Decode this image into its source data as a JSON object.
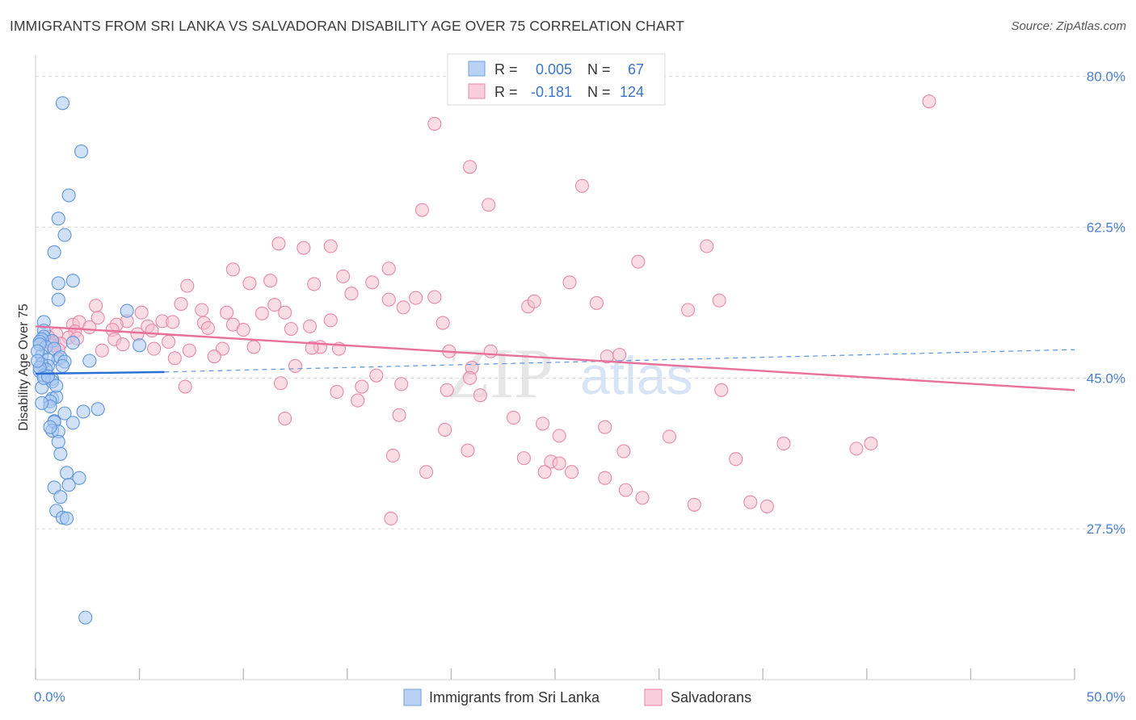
{
  "title": "IMMIGRANTS FROM SRI LANKA VS SALVADORAN DISABILITY AGE OVER 75 CORRELATION CHART",
  "source": "Source: ZipAtlas.com",
  "watermark": {
    "zip": "ZIP",
    "atlas": "atlas"
  },
  "colors": {
    "blue_fill": "#a9c8f0",
    "blue_stroke": "#5f95dd",
    "blue_line": "#2a6fd6",
    "pink_fill": "#f6bfd0",
    "pink_stroke": "#e889a8",
    "pink_line": "#e8709a",
    "grid": "#d9d9d9",
    "tick": "#4a7fd0"
  },
  "legend": {
    "r_label": "R =",
    "n_label": "N =",
    "rows": [
      {
        "series": "blue",
        "r": "0.005",
        "n": "67"
      },
      {
        "series": "pink",
        "r": "-0.181",
        "n": "124"
      }
    ]
  },
  "bottom_legend": [
    "Immigrants from Sri Lanka",
    "Salvadorans"
  ],
  "chart_data": {
    "type": "scatter",
    "xlabel": "",
    "ylabel": "Disability Age Over 75",
    "xlim": [
      0,
      50
    ],
    "ylim": [
      10,
      82.5
    ],
    "x_tick_labels": [
      {
        "x": 0,
        "label": "0.0%"
      },
      {
        "x": 50,
        "label": "50.0%"
      }
    ],
    "y_ticks": [
      {
        "y": 80.0,
        "label": "80.0%"
      },
      {
        "y": 62.5,
        "label": "62.5%"
      },
      {
        "y": 45.0,
        "label": "45.0%"
      },
      {
        "y": 27.5,
        "label": "27.5%"
      }
    ],
    "grid": true,
    "legend_position": "top-center",
    "series": [
      {
        "name": "Immigrants from Sri Lanka",
        "color": "blue",
        "trend": {
          "x": [
            0,
            6.2
          ],
          "y": [
            45.5,
            45.7
          ],
          "dashed_extension": [
            6.2,
            50,
            45.7,
            48.3
          ]
        },
        "points": [
          [
            1.3,
            76.9
          ],
          [
            2.2,
            71.3
          ],
          [
            1.6,
            66.2
          ],
          [
            1.1,
            63.5
          ],
          [
            1.4,
            61.6
          ],
          [
            0.9,
            59.6
          ],
          [
            1.8,
            56.3
          ],
          [
            1.1,
            56.0
          ],
          [
            1.1,
            54.1
          ],
          [
            4.4,
            52.8
          ],
          [
            0.4,
            51.5
          ],
          [
            0.4,
            50.5
          ],
          [
            0.4,
            49.8
          ],
          [
            0.8,
            49.3
          ],
          [
            1.8,
            49.1
          ],
          [
            5.0,
            48.8
          ],
          [
            0.3,
            49.5
          ],
          [
            0.2,
            49.2
          ],
          [
            0.5,
            48.6
          ],
          [
            0.9,
            48.4
          ],
          [
            1.1,
            47.2
          ],
          [
            1.2,
            47.4
          ],
          [
            0.3,
            47.6
          ],
          [
            0.6,
            47.1
          ],
          [
            0.6,
            46.4
          ],
          [
            0.3,
            46.6
          ],
          [
            0.5,
            46.0
          ],
          [
            0.2,
            45.8
          ],
          [
            0.4,
            45.3
          ],
          [
            0.8,
            44.9
          ],
          [
            2.6,
            47.0
          ],
          [
            0.3,
            43.9
          ],
          [
            0.8,
            44.6
          ],
          [
            1.4,
            46.9
          ],
          [
            1.3,
            46.4
          ],
          [
            0.8,
            42.6
          ],
          [
            1.0,
            42.8
          ],
          [
            0.7,
            42.3
          ],
          [
            3.0,
            41.4
          ],
          [
            2.3,
            41.1
          ],
          [
            1.4,
            40.9
          ],
          [
            0.9,
            40.0
          ],
          [
            0.9,
            39.9
          ],
          [
            1.8,
            39.8
          ],
          [
            0.8,
            38.9
          ],
          [
            1.1,
            38.8
          ],
          [
            0.7,
            39.3
          ],
          [
            1.1,
            37.6
          ],
          [
            1.2,
            36.2
          ],
          [
            1.5,
            34.0
          ],
          [
            2.1,
            33.4
          ],
          [
            1.6,
            32.6
          ],
          [
            0.9,
            32.3
          ],
          [
            1.2,
            31.2
          ],
          [
            1.0,
            29.6
          ],
          [
            1.3,
            28.8
          ],
          [
            1.5,
            28.7
          ],
          [
            2.4,
            17.2
          ],
          [
            0.2,
            48.9
          ],
          [
            0.1,
            48.1
          ],
          [
            0.2,
            46.2
          ],
          [
            0.4,
            45.0
          ],
          [
            0.6,
            45.2
          ],
          [
            1.0,
            44.1
          ],
          [
            0.1,
            47.0
          ],
          [
            0.7,
            41.7
          ],
          [
            0.3,
            42.1
          ]
        ]
      },
      {
        "name": "Salvadorans",
        "color": "pink",
        "trend": {
          "x": [
            0,
            50
          ],
          "y": [
            51.0,
            43.6
          ]
        },
        "points": [
          [
            43.0,
            77.1
          ],
          [
            19.2,
            74.5
          ],
          [
            20.9,
            69.5
          ],
          [
            26.3,
            67.3
          ],
          [
            21.8,
            65.1
          ],
          [
            18.6,
            64.5
          ],
          [
            11.7,
            60.6
          ],
          [
            12.9,
            60.1
          ],
          [
            14.2,
            60.3
          ],
          [
            32.3,
            60.3
          ],
          [
            29.0,
            58.5
          ],
          [
            9.5,
            57.6
          ],
          [
            17.0,
            57.7
          ],
          [
            11.3,
            56.3
          ],
          [
            14.8,
            56.8
          ],
          [
            16.2,
            56.1
          ],
          [
            25.7,
            56.1
          ],
          [
            7.3,
            55.7
          ],
          [
            10.3,
            56.0
          ],
          [
            13.4,
            55.9
          ],
          [
            15.2,
            54.8
          ],
          [
            17.0,
            54.1
          ],
          [
            18.3,
            54.3
          ],
          [
            19.2,
            54.4
          ],
          [
            23.7,
            53.3
          ],
          [
            31.4,
            52.9
          ],
          [
            32.9,
            54.0
          ],
          [
            2.9,
            53.4
          ],
          [
            7.0,
            53.6
          ],
          [
            11.5,
            53.5
          ],
          [
            12.0,
            52.6
          ],
          [
            17.7,
            53.2
          ],
          [
            24.0,
            53.9
          ],
          [
            27.0,
            53.7
          ],
          [
            8.0,
            52.9
          ],
          [
            9.2,
            52.6
          ],
          [
            5.1,
            52.6
          ],
          [
            3.0,
            52.0
          ],
          [
            4.4,
            51.6
          ],
          [
            6.1,
            51.6
          ],
          [
            10.9,
            52.5
          ],
          [
            14.2,
            51.7
          ],
          [
            19.6,
            51.4
          ],
          [
            3.9,
            51.2
          ],
          [
            8.1,
            51.4
          ],
          [
            9.5,
            51.2
          ],
          [
            1.8,
            51.2
          ],
          [
            2.1,
            51.5
          ],
          [
            2.6,
            50.9
          ],
          [
            5.4,
            51.0
          ],
          [
            6.6,
            51.5
          ],
          [
            8.3,
            50.8
          ],
          [
            12.3,
            50.7
          ],
          [
            13.2,
            51.0
          ],
          [
            1.9,
            50.4
          ],
          [
            3.7,
            50.6
          ],
          [
            4.9,
            50.1
          ],
          [
            5.6,
            50.5
          ],
          [
            10.0,
            50.6
          ],
          [
            1.0,
            50.1
          ],
          [
            0.6,
            49.8
          ],
          [
            1.6,
            49.7
          ],
          [
            2.0,
            49.6
          ],
          [
            0.4,
            49.3
          ],
          [
            0.9,
            49.1
          ],
          [
            1.2,
            49.0
          ],
          [
            3.8,
            49.5
          ],
          [
            6.4,
            49.2
          ],
          [
            4.2,
            48.9
          ],
          [
            7.4,
            48.2
          ],
          [
            9.0,
            48.4
          ],
          [
            10.5,
            48.6
          ],
          [
            13.7,
            48.6
          ],
          [
            14.6,
            48.4
          ],
          [
            19.9,
            48.1
          ],
          [
            21.9,
            48.1
          ],
          [
            27.5,
            47.5
          ],
          [
            6.7,
            47.3
          ],
          [
            8.6,
            47.5
          ],
          [
            0.8,
            48.8
          ],
          [
            1.1,
            48.3
          ],
          [
            28.1,
            47.7
          ],
          [
            21.0,
            46.2
          ],
          [
            12.5,
            46.4
          ],
          [
            3.2,
            48.2
          ],
          [
            5.7,
            48.4
          ],
          [
            16.4,
            45.3
          ],
          [
            7.2,
            44.0
          ],
          [
            11.8,
            44.4
          ],
          [
            15.7,
            44.0
          ],
          [
            19.8,
            43.6
          ],
          [
            15.5,
            42.4
          ],
          [
            14.5,
            43.4
          ],
          [
            17.5,
            40.7
          ],
          [
            12.0,
            40.3
          ],
          [
            17.6,
            44.3
          ],
          [
            20.9,
            45.0
          ],
          [
            21.4,
            43.0
          ],
          [
            23.0,
            40.4
          ],
          [
            24.4,
            39.7
          ],
          [
            25.2,
            38.3
          ],
          [
            27.4,
            39.3
          ],
          [
            30.5,
            38.2
          ],
          [
            19.7,
            39.0
          ],
          [
            20.8,
            36.6
          ],
          [
            23.5,
            35.7
          ],
          [
            24.8,
            35.3
          ],
          [
            28.3,
            36.5
          ],
          [
            33.7,
            35.6
          ],
          [
            36.0,
            37.4
          ],
          [
            39.5,
            36.8
          ],
          [
            40.2,
            37.4
          ],
          [
            17.2,
            36.0
          ],
          [
            18.8,
            34.1
          ],
          [
            24.5,
            34.1
          ],
          [
            25.2,
            35.1
          ],
          [
            25.8,
            34.1
          ],
          [
            27.4,
            33.4
          ],
          [
            29.2,
            31.1
          ],
          [
            34.4,
            30.6
          ],
          [
            31.7,
            30.3
          ],
          [
            35.2,
            30.1
          ],
          [
            28.4,
            32.0
          ],
          [
            17.1,
            28.7
          ],
          [
            33.0,
            43.6
          ],
          [
            13.3,
            48.5
          ]
        ]
      }
    ]
  }
}
